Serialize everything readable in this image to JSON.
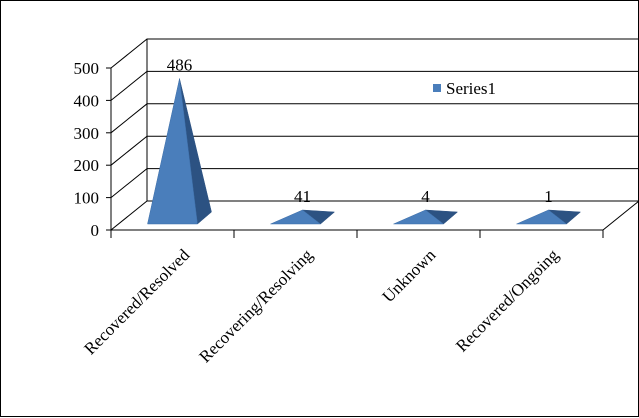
{
  "chart_data": {
    "type": "bar",
    "style": "3d-pyramid",
    "categories": [
      "Recovered/Resolved",
      "Recovering/Resolving",
      "Unknown",
      "Recovered/Ongoing"
    ],
    "series": [
      {
        "name": "Series1",
        "values": [
          486,
          41,
          4,
          1
        ],
        "color": "#4a7ebb"
      }
    ],
    "data_labels": [
      "486",
      "41",
      "4",
      "1"
    ],
    "yticks": [
      0,
      100,
      200,
      300,
      400,
      500
    ],
    "ylim": [
      0,
      500
    ],
    "grid": true,
    "legend_position": "top-right",
    "title": "",
    "xlabel": "",
    "ylabel": ""
  }
}
